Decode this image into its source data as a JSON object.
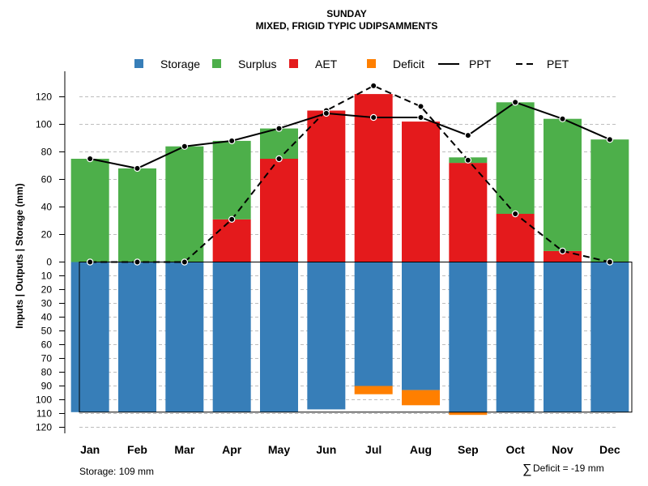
{
  "chart_data": {
    "type": "bar",
    "title": "SUNDAY",
    "subtitle": "MIXED, FRIGID TYPIC UDIPSAMMENTS",
    "ylabel": "Inputs | Outputs | Storage    (mm)",
    "ylim": [
      -120,
      130
    ],
    "yticks_up": [
      0,
      20,
      40,
      60,
      80,
      100,
      120
    ],
    "yticks_down": [
      10,
      20,
      30,
      40,
      50,
      60,
      70,
      80,
      90,
      100,
      110,
      120
    ],
    "categories": [
      "Jan",
      "Feb",
      "Mar",
      "Apr",
      "May",
      "Jun",
      "Jul",
      "Aug",
      "Sep",
      "Oct",
      "Nov",
      "Dec"
    ],
    "series": [
      {
        "name": "Storage",
        "color": "#377EB8",
        "values": [
          109,
          109,
          109,
          109,
          109,
          107,
          90,
          93,
          109,
          109,
          109,
          109
        ]
      },
      {
        "name": "Surplus",
        "color": "#4DAF4A",
        "values": [
          75,
          68,
          84,
          57,
          22,
          0,
          0,
          0,
          4,
          81,
          96,
          89
        ]
      },
      {
        "name": "AET",
        "color": "#E41A1C",
        "values": [
          0,
          0,
          0,
          31,
          75,
          110,
          122,
          102,
          72,
          35,
          8,
          0
        ]
      },
      {
        "name": "Deficit",
        "color": "#FF7F00",
        "values": [
          0,
          0,
          0,
          0,
          0,
          0,
          6,
          11,
          2,
          0,
          0,
          0
        ]
      },
      {
        "name": "PPT",
        "style": "solid",
        "values": [
          75,
          68,
          84,
          88,
          97,
          108,
          105,
          105,
          92,
          116,
          104,
          89
        ]
      },
      {
        "name": "PET",
        "style": "dashed",
        "values": [
          0,
          0,
          0,
          31,
          75,
          110,
          128,
          113,
          74,
          35,
          8,
          0
        ]
      }
    ],
    "legend_position": "top",
    "footnotes": {
      "storage": "Storage: 109 mm",
      "deficit_symbol": "∑",
      "deficit": "Deficit = -19 mm"
    }
  }
}
